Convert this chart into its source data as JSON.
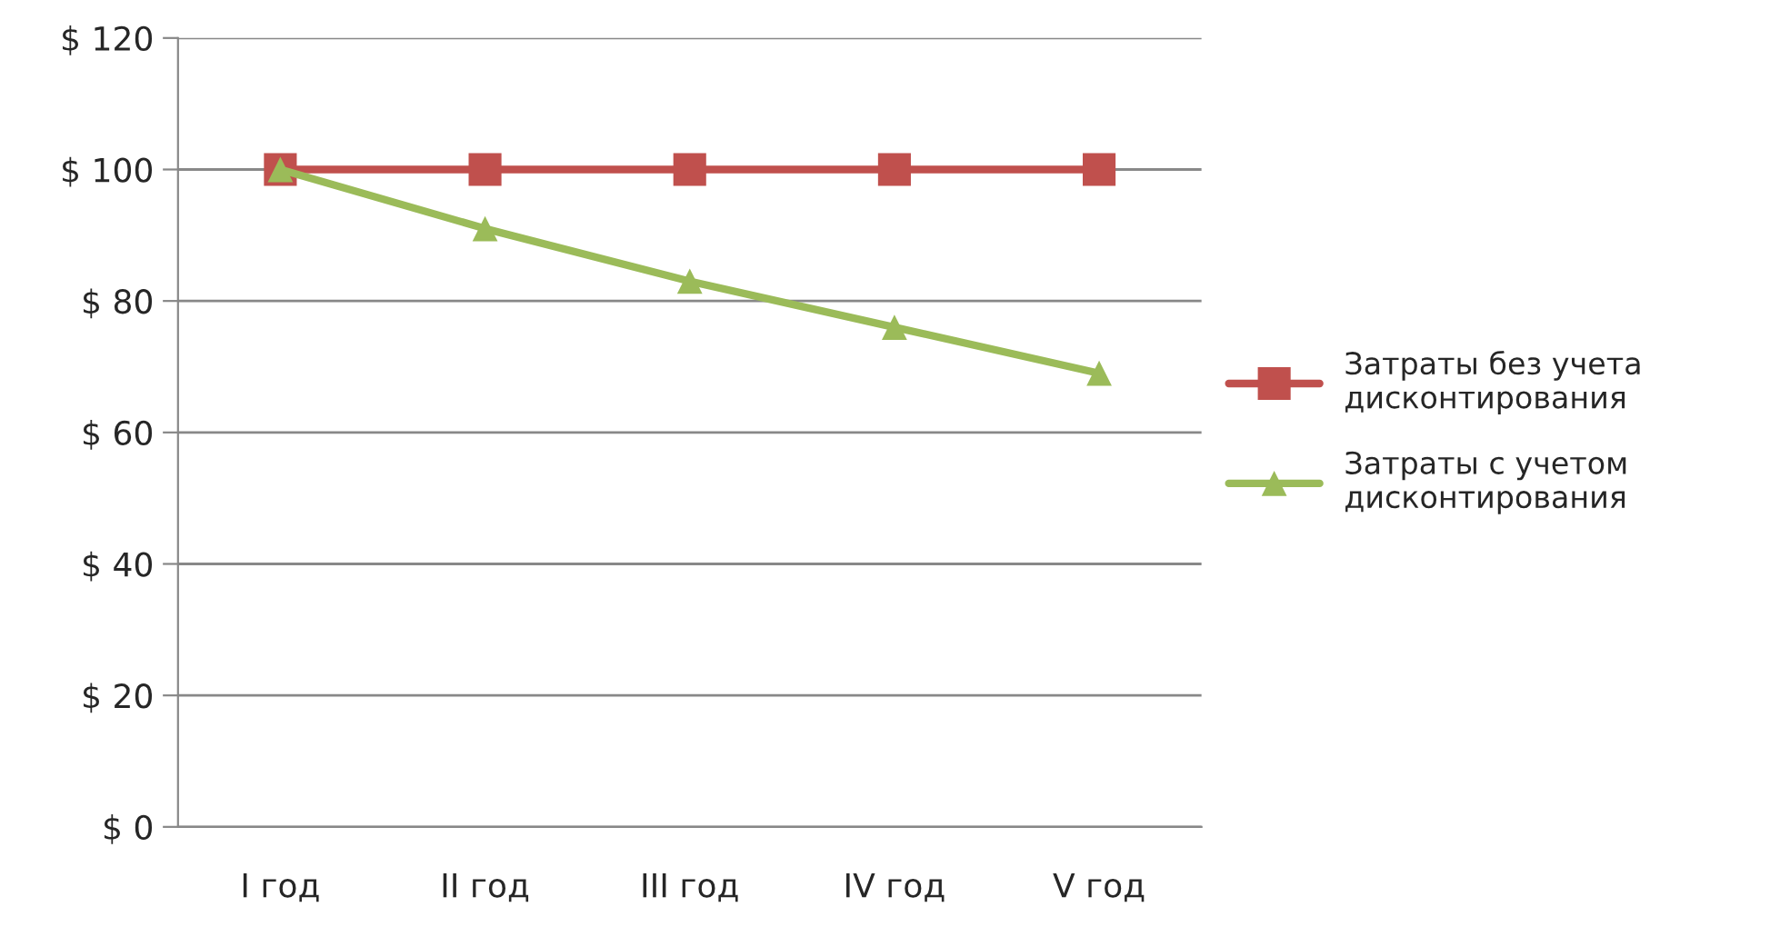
{
  "chart_data": {
    "type": "line",
    "categories": [
      "I год",
      "II год",
      "III год",
      "IV год",
      "V год"
    ],
    "series": [
      {
        "name": "Затраты без учета\nдисконтирования",
        "color": "#c0504d",
        "marker": "square",
        "values": [
          100,
          100,
          100,
          100,
          100
        ]
      },
      {
        "name": "Затраты с учетом\nдисконтирования",
        "color": "#9bbb59",
        "marker": "triangle",
        "values": [
          100,
          91,
          83,
          76,
          69
        ]
      }
    ],
    "ylim": [
      0,
      120
    ],
    "yticks": [
      {
        "value": 0,
        "label": "$ 0"
      },
      {
        "value": 20,
        "label": "$ 20"
      },
      {
        "value": 40,
        "label": "$ 40"
      },
      {
        "value": 60,
        "label": "$ 60"
      },
      {
        "value": 80,
        "label": "$ 80"
      },
      {
        "value": 100,
        "label": "$ 100"
      },
      {
        "value": 120,
        "label": "$ 120"
      }
    ],
    "grid": "y",
    "legend": "right",
    "line_style": "solid"
  }
}
